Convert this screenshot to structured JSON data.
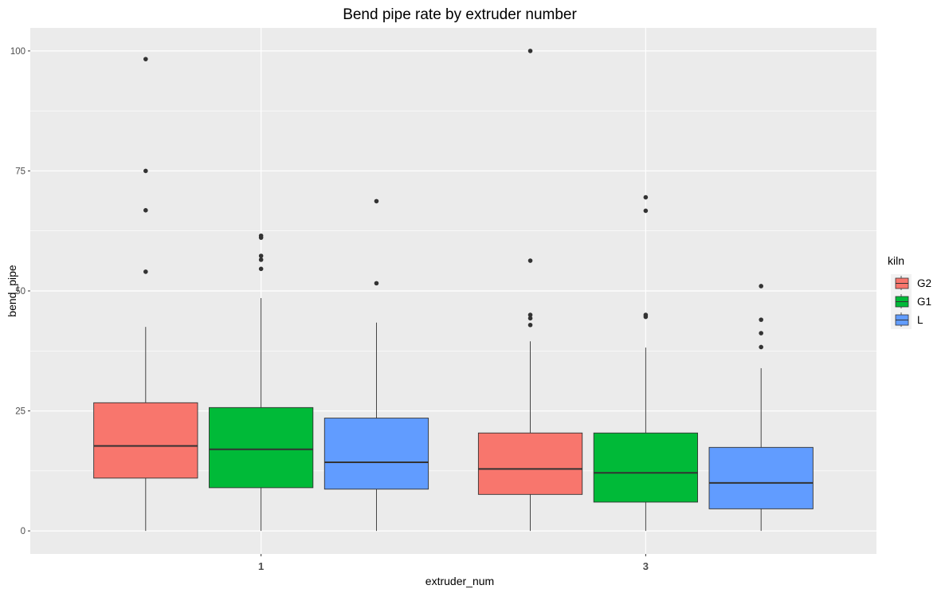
{
  "chart_data": {
    "type": "boxplot",
    "title": "Bend pipe rate by extruder number",
    "xlabel": "extruder_num",
    "ylabel": "bend_pipe",
    "categories": [
      "1",
      "3"
    ],
    "y_ticks": [
      0,
      25,
      50,
      75,
      100
    ],
    "y_tick_labels": [
      "0",
      "25",
      "50",
      "75",
      "100"
    ],
    "ylim": [
      -4.8,
      104.8
    ],
    "grid": true,
    "legend": {
      "title": "kiln",
      "position": "right",
      "entries": [
        "G2",
        "G1",
        "L"
      ]
    },
    "series": [
      {
        "name": "G2",
        "color": "#F8766D",
        "boxes": [
          {
            "category": "1",
            "min": 0,
            "q1": 11.0,
            "median": 17.7,
            "q3": 26.7,
            "max": 42.5,
            "outliers": [
              54.0,
              66.8,
              75.0,
              98.3
            ]
          },
          {
            "category": "3",
            "min": 0,
            "q1": 7.6,
            "median": 12.9,
            "q3": 20.4,
            "max": 39.5,
            "outliers": [
              42.9,
              44.3,
              45.0,
              56.3,
              100.0
            ]
          }
        ]
      },
      {
        "name": "G1",
        "color": "#00BA38",
        "boxes": [
          {
            "category": "1",
            "min": 0,
            "q1": 9.0,
            "median": 17.0,
            "q3": 25.7,
            "max": 48.5,
            "outliers": [
              54.6,
              56.5,
              57.3,
              61.1,
              61.5
            ]
          },
          {
            "category": "3",
            "min": 0,
            "q1": 6.0,
            "median": 12.1,
            "q3": 20.4,
            "max": 38.2,
            "outliers": [
              44.6,
              45.0,
              66.7,
              69.5
            ]
          }
        ]
      },
      {
        "name": "L",
        "color": "#619CFF",
        "boxes": [
          {
            "category": "1",
            "min": 0,
            "q1": 8.7,
            "median": 14.3,
            "q3": 23.5,
            "max": 43.4,
            "outliers": [
              51.6,
              68.7
            ]
          },
          {
            "category": "3",
            "min": 0,
            "q1": 4.6,
            "median": 10.0,
            "q3": 17.4,
            "max": 33.9,
            "outliers": [
              38.3,
              41.2,
              44.0,
              51.0
            ]
          }
        ]
      }
    ]
  }
}
